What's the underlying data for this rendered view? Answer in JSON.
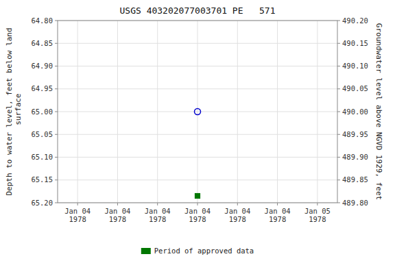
{
  "chart_data": {
    "type": "scatter",
    "title": "USGS 403202077003701 PE   571",
    "categories": [
      "Jan 04\n1978",
      "Jan 04\n1978",
      "Jan 04\n1978",
      "Jan 04\n1978",
      "Jan 04\n1978",
      "Jan 04\n1978",
      "Jan 05\n1978"
    ],
    "series": [
      {
        "color": "#0000cc",
        "marker": "open-circle",
        "values": [
          null,
          null,
          null,
          65.0,
          null,
          null,
          null
        ]
      },
      {
        "name": "Period of approved data",
        "color": "#007700",
        "marker": "square",
        "values": [
          null,
          null,
          null,
          65.185,
          null,
          null,
          null
        ]
      }
    ],
    "ylim": [
      65.2,
      64.8
    ],
    "yticks": [
      {
        "value": 64.8,
        "label": "64.80"
      },
      64.85,
      {
        "value": 64.9,
        "label": "64.90"
      },
      64.95,
      {
        "value": 65.0,
        "label": "65.00"
      },
      65.05,
      {
        "value": 65.1,
        "label": "65.10"
      },
      65.15,
      {
        "value": 65.2,
        "label": "65.20"
      }
    ],
    "y2lim": [
      489.8,
      490.2
    ],
    "y2ticks": [
      {
        "value": 490.2,
        "label": "490.20"
      },
      490.15,
      {
        "value": 490.1,
        "label": "490.10"
      },
      490.05,
      {
        "value": 490.0,
        "label": "490.00"
      },
      489.95,
      {
        "value": 489.9,
        "label": "489.90"
      },
      489.85,
      {
        "value": 489.8,
        "label": "489.80"
      }
    ],
    "ylabel": "Depth to water level, feet below land\n surface",
    "y2label": "Groundwater level above NGVD 1929, feet",
    "grid": true,
    "legend": "bottom"
  }
}
